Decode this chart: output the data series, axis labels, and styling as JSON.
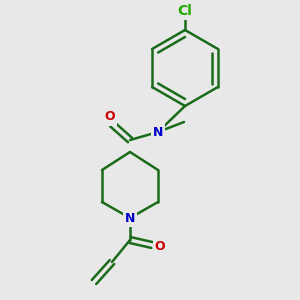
{
  "background_color": "#e8e8e8",
  "bond_color": "#1a6b1a",
  "bond_lw": 1.8,
  "atom_colors": {
    "N": "#0000cc",
    "O": "#cc0000",
    "Cl": "#22aa00",
    "C": "#000000"
  },
  "font_size": 9,
  "figsize": [
    3.0,
    3.0
  ],
  "dpi": 100
}
